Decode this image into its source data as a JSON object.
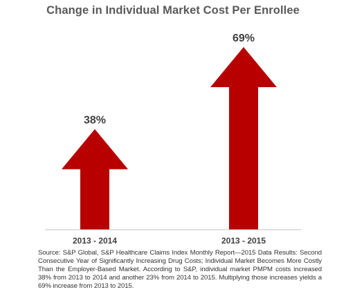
{
  "colors": {
    "arrow": "#b80000",
    "title": "#595959",
    "axis": "#bfbfbf",
    "text": "#333333"
  },
  "chart_data": {
    "type": "bar",
    "mark_shape": "arrow",
    "title": "Change in Individual Market Cost Per Enrollee",
    "categories": [
      "2013 - 2014",
      "2013 - 2015"
    ],
    "values": [
      38,
      69
    ],
    "value_labels": [
      "38%",
      "69%"
    ],
    "ylim": [
      0,
      75
    ],
    "grid": false,
    "legend": "none",
    "xlabel": "",
    "ylabel": ""
  },
  "source_note": "Source: S&P Global, S&P Healthcare Claims Index Monthly Report—2015 Data Results: Second Consecutive Year of Significantly Increasing Drug Costs; Individual Market Becomes More Costly Than the Employer-Based Market. According to S&P, individual market PMPM costs increased 38% from 2013 to 2014 and another 23% from 2014 to 2015. Multiplying those increases yields a 69% increase from 2013 to 2015."
}
